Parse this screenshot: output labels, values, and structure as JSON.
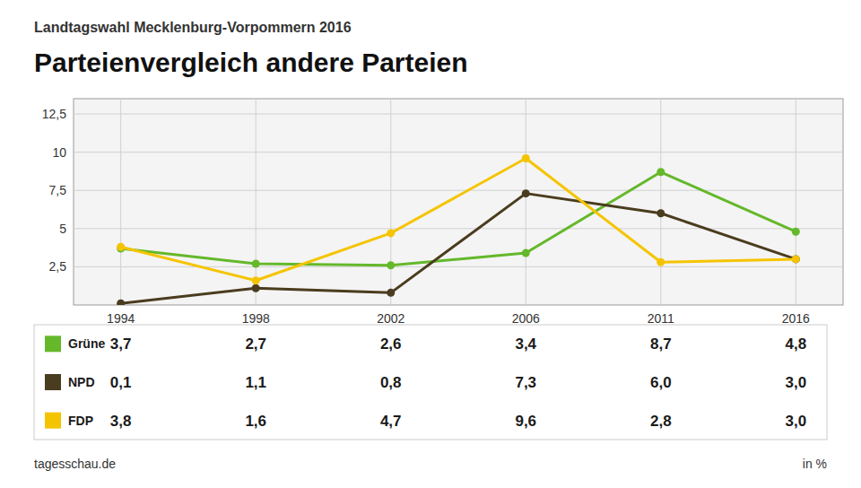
{
  "chart_data": {
    "type": "line",
    "subtitle": "Landtagswahl Mecklenburg-Vorpommern 2016",
    "title": "Parteienvergleich andere Parteien",
    "categories": [
      1994,
      1998,
      2002,
      2006,
      2011,
      2016
    ],
    "series": [
      {
        "name": "Grüne",
        "color": "#64b82a",
        "values": [
          3.7,
          2.7,
          2.6,
          3.4,
          8.7,
          4.8
        ],
        "value_labels": [
          "3,7",
          "2,7",
          "2,6",
          "3,4",
          "8,7",
          "4,8"
        ]
      },
      {
        "name": "NPD",
        "color": "#4a3c1e",
        "values": [
          0.1,
          1.1,
          0.8,
          7.3,
          6.0,
          3.0
        ],
        "value_labels": [
          "0,1",
          "1,1",
          "0,8",
          "7,3",
          "6,0",
          "3,0"
        ]
      },
      {
        "name": "FDP",
        "color": "#f5c400",
        "values": [
          3.8,
          1.6,
          4.7,
          9.6,
          2.8,
          3.0
        ],
        "value_labels": [
          "3,8",
          "1,6",
          "4,7",
          "9,6",
          "2,8",
          "3,0"
        ]
      }
    ],
    "ylim": [
      0,
      13.5
    ],
    "yticks": [
      {
        "value": 2.5,
        "label": "2,5"
      },
      5,
      {
        "value": 7.5,
        "label": "7,5"
      },
      10,
      {
        "value": 12.5,
        "label": "12,5"
      }
    ],
    "grid": true,
    "marker": "circle",
    "annotations": [
      "tagesschau.de",
      "in %"
    ]
  }
}
